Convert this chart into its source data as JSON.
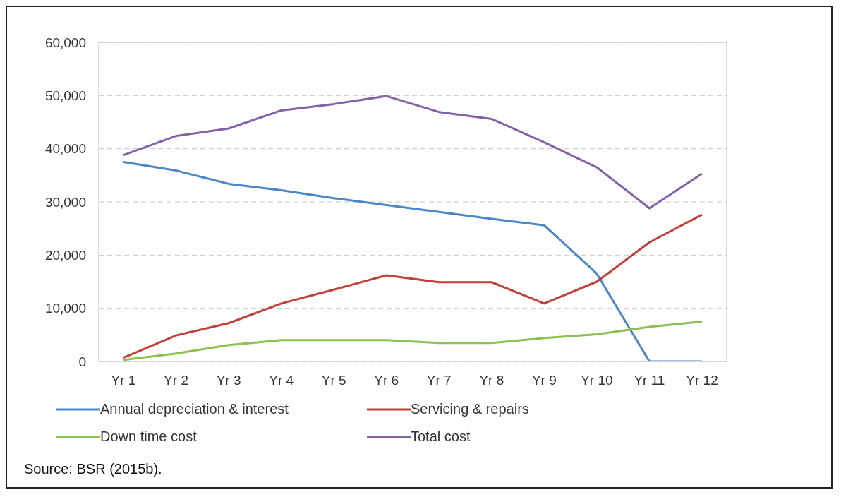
{
  "chart_data": {
    "type": "line",
    "categories": [
      "Yr 1",
      "Yr 2",
      "Yr 3",
      "Yr 4",
      "Yr 5",
      "Yr 6",
      "Yr 7",
      "Yr 8",
      "Yr 9",
      "Yr 10",
      "Yr 11",
      "Yr 12"
    ],
    "series": [
      {
        "name": "Annual depreciation & interest",
        "color": "#4a86c8",
        "values": [
          37500,
          35900,
          33400,
          32200,
          30700,
          29400,
          28100,
          26800,
          25600,
          16500,
          0,
          0
        ]
      },
      {
        "name": "Servicing & repairs",
        "color": "#c0403a",
        "values": [
          700,
          4900,
          7200,
          10900,
          13500,
          16200,
          14900,
          14900,
          10900,
          15000,
          22400,
          27600
        ]
      },
      {
        "name": "Down time cost",
        "color": "#8cc152",
        "values": [
          300,
          1500,
          3100,
          4000,
          4000,
          4000,
          3500,
          3500,
          4400,
          5100,
          6500,
          7500
        ]
      },
      {
        "name": "Total cost",
        "color": "#8461a8",
        "values": [
          38800,
          42400,
          43800,
          47200,
          48400,
          49900,
          46900,
          45600,
          41200,
          36500,
          28800,
          35300
        ]
      }
    ],
    "ylim": [
      0,
      60000
    ],
    "yticks": [
      {
        "value": 0,
        "label": "0"
      },
      {
        "value": 10000,
        "label": "10,000"
      },
      {
        "value": 20000,
        "label": "20,000"
      },
      {
        "value": 30000,
        "label": "30,000"
      },
      {
        "value": 40000,
        "label": "40,000"
      },
      {
        "value": 50000,
        "label": "50,000"
      },
      {
        "value": 60000,
        "label": "60,000"
      }
    ],
    "grid": "y",
    "legend": "bottom",
    "marker": "none",
    "line_style": "solid",
    "annotations": [
      "Source: BSR (2015b)."
    ]
  }
}
